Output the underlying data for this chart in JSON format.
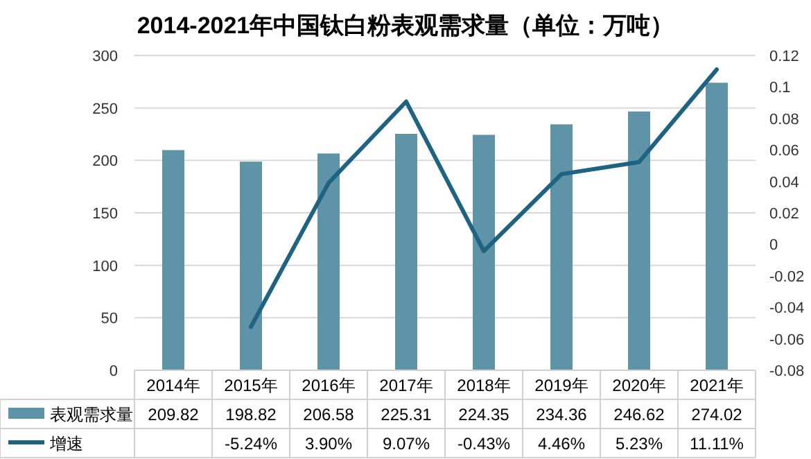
{
  "chart_data": {
    "type": "bar",
    "title": "2014-2021年中国钛白粉表观需求量（单位：万吨）",
    "categories": [
      "2014年",
      "2015年",
      "2016年",
      "2017年",
      "2018年",
      "2019年",
      "2020年",
      "2021年"
    ],
    "series": [
      {
        "name": "表观需求量",
        "color": "#5f93a8",
        "values": [
          209.82,
          198.82,
          206.58,
          225.31,
          224.35,
          234.36,
          246.62,
          274.02
        ],
        "value_labels": [
          "209.82",
          "198.82",
          "206.58",
          "225.31",
          "224.35",
          "234.36",
          "246.62",
          "274.02"
        ]
      },
      {
        "name": "增速",
        "type": "line",
        "axis": "y2",
        "color": "#1f6383",
        "values": [
          null,
          -0.0524,
          0.039,
          0.0907,
          -0.0043,
          0.0446,
          0.0523,
          0.1111
        ],
        "value_labels": [
          null,
          "-5.24%",
          "3.90%",
          "9.07%",
          "-0.43%",
          "4.46%",
          "5.23%",
          "11.11%"
        ]
      }
    ],
    "ylim": [
      0,
      300
    ],
    "yticks": [
      0,
      50,
      100,
      150,
      200,
      250,
      300
    ],
    "y2lim": [
      -0.08,
      0.12
    ],
    "y2ticks": [
      -0.08,
      -0.06,
      -0.04,
      -0.02,
      0,
      0.02,
      0.04,
      0.06,
      0.08,
      0.1,
      0.12
    ],
    "grid": "y",
    "legend": "bottom",
    "marker": "none",
    "line_style": "solid"
  }
}
